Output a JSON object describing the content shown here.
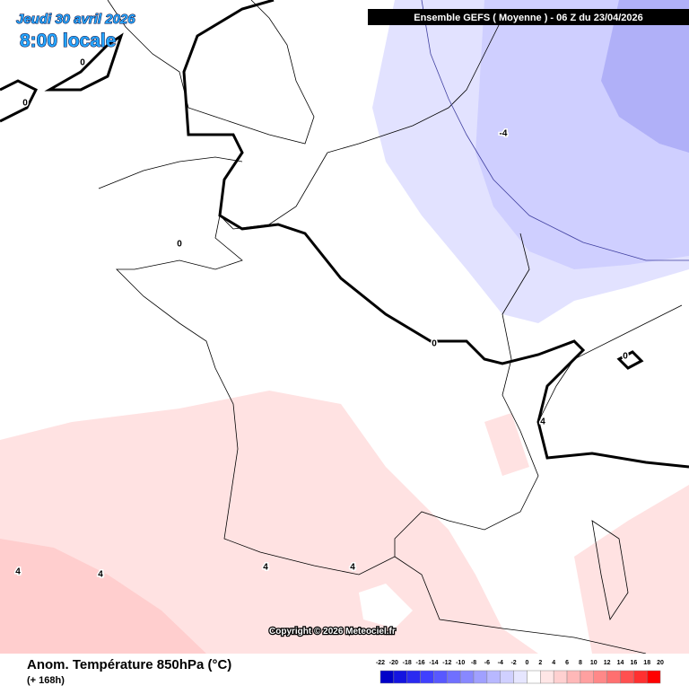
{
  "header": {
    "date": "Jeudi 30 avril 2026",
    "time": "8:00 locale",
    "run": "Ensemble GEFS  ( Moyenne )  -  06 Z du 23/04/2026"
  },
  "map": {
    "contour_labels": [
      "0",
      "0",
      "0",
      "0",
      "0",
      "-4",
      "4",
      "4",
      "4",
      "4",
      "4"
    ],
    "copyright": "Copyright © 2026 Meteociel.fr"
  },
  "footer": {
    "title": "Anom. Température 850hPa (°C)",
    "lead": "(+ 168h)"
  },
  "legend": {
    "labels": [
      "-22",
      "-20",
      "-18",
      "-16",
      "-14",
      "-12",
      "-10",
      "-8",
      "-6",
      "-4",
      "-2",
      "0",
      "2",
      "4",
      "6",
      "8",
      "10",
      "12",
      "14",
      "16",
      "18",
      "20"
    ],
    "colors": [
      "#0000c8",
      "#1414e0",
      "#2a2af0",
      "#4040ff",
      "#5858ff",
      "#7070ff",
      "#8888ff",
      "#a0a0ff",
      "#b8b8ff",
      "#d0d0ff",
      "#e6e6ff",
      "#ffffff",
      "#ffe6e6",
      "#ffd0d0",
      "#ffb8b8",
      "#ffa0a0",
      "#ff8888",
      "#ff7070",
      "#ff5050",
      "#ff3030",
      "#ff0000"
    ]
  }
}
